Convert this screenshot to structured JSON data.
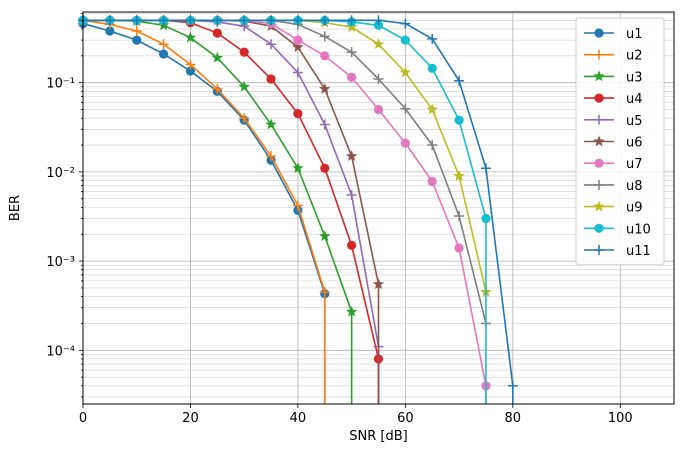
{
  "chart_data": {
    "type": "line",
    "title": "",
    "xlabel": "SNR [dB]",
    "ylabel": "BER",
    "xlim": [
      0,
      110
    ],
    "ylim": [
      2.5e-05,
      0.62
    ],
    "yscale": "log",
    "grid": "major and minor",
    "legend_position": "top-right",
    "xticks": [
      0,
      20,
      40,
      60,
      80,
      100
    ],
    "xtick_labels": [
      "0",
      "20",
      "40",
      "60",
      "80",
      "100"
    ],
    "yticks": [
      0.1,
      0.01,
      0.001,
      0.0001
    ],
    "ytick_labels": [
      "10⁻¹",
      "10⁻²",
      "10⁻³",
      "10⁻⁴"
    ],
    "series": [
      {
        "name": "u1",
        "color": "#1f77b4",
        "marker": "circle",
        "x": [
          0,
          5,
          10,
          15,
          20,
          25,
          30,
          35,
          40,
          45,
          45
        ],
        "y": [
          0.46,
          0.38,
          0.3,
          0.21,
          0.135,
          0.08,
          0.038,
          0.0135,
          0.0037,
          0.00043,
          2.5e-05
        ]
      },
      {
        "name": "u2",
        "color": "#ff7f0e",
        "marker": "plus",
        "x": [
          0,
          5,
          10,
          15,
          20,
          25,
          30,
          35,
          40,
          45,
          45
        ],
        "y": [
          0.5,
          0.45,
          0.38,
          0.27,
          0.16,
          0.085,
          0.04,
          0.015,
          0.0042,
          0.00045,
          2.5e-05
        ]
      },
      {
        "name": "u3",
        "color": "#2ca02c",
        "marker": "star",
        "x": [
          0,
          5,
          10,
          15,
          20,
          25,
          30,
          35,
          40,
          45,
          50,
          50
        ],
        "y": [
          0.5,
          0.5,
          0.49,
          0.44,
          0.32,
          0.19,
          0.09,
          0.034,
          0.011,
          0.0019,
          0.00027,
          2.5e-05
        ]
      },
      {
        "name": "u4",
        "color": "#d62728",
        "marker": "circle",
        "x": [
          0,
          5,
          10,
          15,
          20,
          25,
          30,
          35,
          40,
          45,
          50,
          55,
          55
        ],
        "y": [
          0.5,
          0.5,
          0.5,
          0.5,
          0.47,
          0.36,
          0.22,
          0.11,
          0.045,
          0.011,
          0.0015,
          8e-05,
          2.5e-05
        ]
      },
      {
        "name": "u5",
        "color": "#9467bd",
        "marker": "plus",
        "x": [
          0,
          5,
          10,
          15,
          20,
          25,
          30,
          35,
          40,
          45,
          50,
          55,
          55
        ],
        "y": [
          0.5,
          0.5,
          0.5,
          0.5,
          0.5,
          0.48,
          0.43,
          0.27,
          0.13,
          0.034,
          0.0055,
          0.00011,
          2.5e-05
        ]
      },
      {
        "name": "u6",
        "color": "#8c564b",
        "marker": "star",
        "x": [
          0,
          5,
          10,
          15,
          20,
          25,
          30,
          35,
          40,
          45,
          50,
          55,
          55
        ],
        "y": [
          0.5,
          0.5,
          0.5,
          0.5,
          0.5,
          0.5,
          0.49,
          0.43,
          0.25,
          0.085,
          0.015,
          0.00055,
          2.5e-05
        ]
      },
      {
        "name": "u7",
        "color": "#e377c2",
        "marker": "circle",
        "x": [
          0,
          5,
          10,
          15,
          20,
          25,
          30,
          35,
          40,
          45,
          50,
          55,
          60,
          65,
          70,
          75,
          75
        ],
        "y": [
          0.5,
          0.5,
          0.5,
          0.5,
          0.5,
          0.5,
          0.5,
          0.46,
          0.3,
          0.2,
          0.115,
          0.05,
          0.021,
          0.0078,
          0.0014,
          4e-05,
          2.5e-05
        ]
      },
      {
        "name": "u8",
        "color": "#7f7f7f",
        "marker": "plus",
        "x": [
          0,
          5,
          10,
          15,
          20,
          25,
          30,
          35,
          40,
          45,
          50,
          55,
          60,
          65,
          70,
          75
        ],
        "y": [
          0.5,
          0.5,
          0.5,
          0.5,
          0.5,
          0.5,
          0.5,
          0.5,
          0.45,
          0.33,
          0.22,
          0.11,
          0.051,
          0.02,
          0.0032,
          0.0002
        ]
      },
      {
        "name": "u9",
        "color": "#bcbd22",
        "marker": "star",
        "x": [
          0,
          5,
          10,
          15,
          20,
          25,
          30,
          35,
          40,
          45,
          50,
          55,
          60,
          65,
          70,
          75
        ],
        "y": [
          0.5,
          0.5,
          0.5,
          0.5,
          0.5,
          0.5,
          0.5,
          0.5,
          0.5,
          0.47,
          0.42,
          0.27,
          0.13,
          0.05,
          0.009,
          0.00045
        ]
      },
      {
        "name": "u10",
        "color": "#17becf",
        "marker": "circle",
        "x": [
          0,
          5,
          10,
          15,
          20,
          25,
          30,
          35,
          40,
          45,
          50,
          55,
          60,
          65,
          70,
          75,
          75
        ],
        "y": [
          0.5,
          0.5,
          0.5,
          0.5,
          0.5,
          0.5,
          0.5,
          0.5,
          0.5,
          0.5,
          0.48,
          0.44,
          0.3,
          0.145,
          0.038,
          0.003,
          2.5e-05
        ]
      },
      {
        "name": "u11",
        "color": "#1f77b4",
        "marker": "plus",
        "x": [
          0,
          5,
          10,
          15,
          20,
          25,
          30,
          35,
          40,
          45,
          50,
          55,
          60,
          65,
          70,
          75,
          80,
          80
        ],
        "y": [
          0.5,
          0.5,
          0.5,
          0.5,
          0.5,
          0.5,
          0.5,
          0.5,
          0.5,
          0.5,
          0.5,
          0.5,
          0.46,
          0.31,
          0.105,
          0.011,
          4e-05,
          2.5e-05
        ]
      }
    ]
  }
}
